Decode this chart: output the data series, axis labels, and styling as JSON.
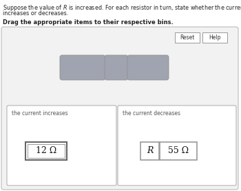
{
  "title_line1": "Suppose the value of $R$ is increased. For each resistor in turn, state whether the current flowing through it",
  "title_line2": "increases or decreases.",
  "subtitle": "Drag the appropriate items to their respective bins.",
  "bg_color": "#f2f2f2",
  "bin_bg_color": "#f0f0f0",
  "button_labels": [
    "Reset",
    "Help"
  ],
  "drag_box_color": "#a0a4b0",
  "bin1_label": "the current increases",
  "bin2_label": "the current decreases",
  "item_12ohm": "12 Ω",
  "item_R": "R",
  "item_55ohm": "55 Ω",
  "outer_edge": "#bbbbbb",
  "bin_edge": "#aaaaaa",
  "item_edge": "#666666",
  "item_edge2": "#999999"
}
